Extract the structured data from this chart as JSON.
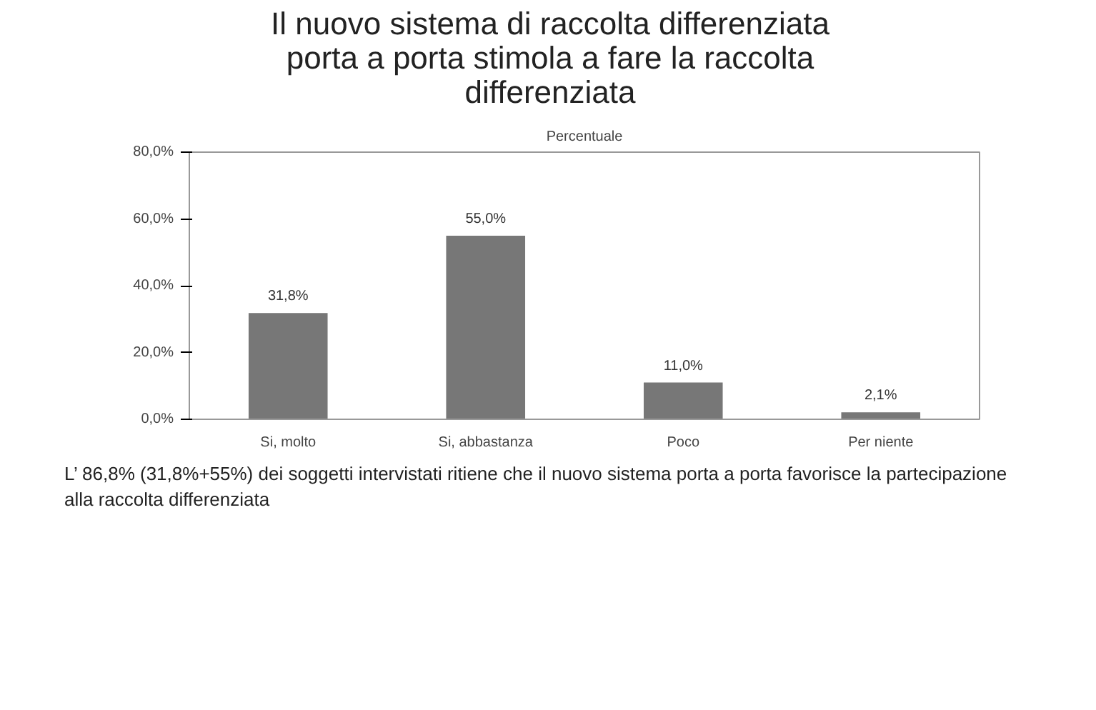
{
  "chart_data": {
    "type": "bar",
    "title": "Il nuovo sistema di raccolta differenziata porta a porta stimola a fare la raccolta differenziata",
    "subtitle": "Percentuale",
    "categories": [
      "Si, molto",
      "Si, abbastanza",
      "Poco",
      "Per niente"
    ],
    "values": [
      31.8,
      55.0,
      11.0,
      2.1
    ],
    "color": "#777777",
    "value_labels": [
      "31,8%",
      "55,0%",
      "11,0%",
      "2,1%"
    ],
    "ylim": [
      0,
      80
    ],
    "yticks": [
      {
        "value": 0,
        "label": "0,0%"
      },
      {
        "value": 20,
        "label": "20,0%"
      },
      {
        "value": 40,
        "label": "40,0%"
      },
      {
        "value": 60,
        "label": "60,0%"
      },
      {
        "value": 80,
        "label": "80,0%"
      }
    ],
    "grid": false,
    "annotations": [
      "L’ 86,8% (31,8%+55%) dei soggetti intervistati ritiene che il nuovo sistema porta a porta favorisce la partecipazione alla raccolta differenziata"
    ]
  }
}
